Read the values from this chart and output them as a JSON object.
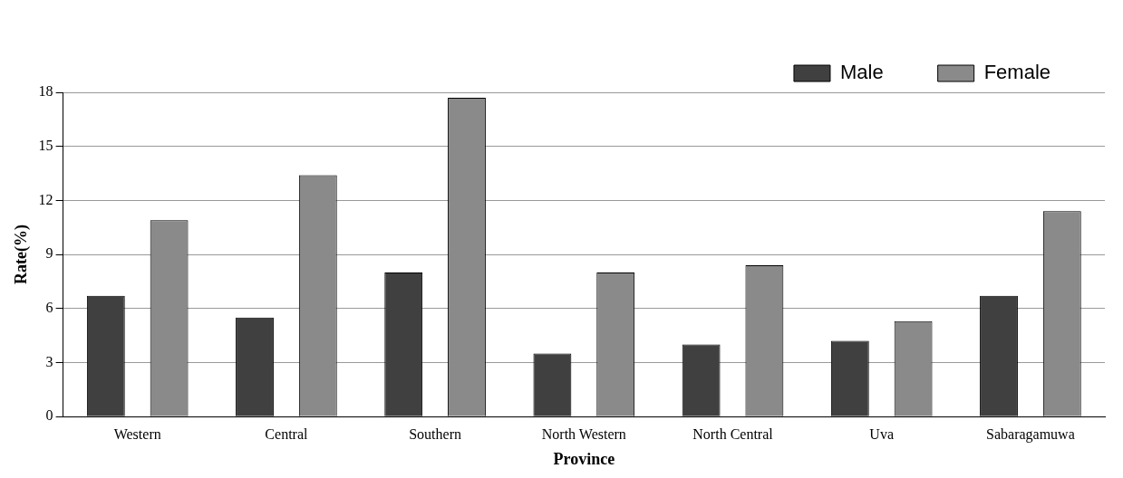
{
  "chart_data": {
    "type": "bar",
    "xlabel": "Province",
    "ylabel": "Rate(%)",
    "categories": [
      "Western",
      "Central",
      "Southern",
      "North Western",
      "North Central",
      "Uva",
      "Sabaragamuwa"
    ],
    "series": [
      {
        "name": "Male",
        "color": "#404040",
        "values": [
          6.7,
          5.5,
          8.0,
          3.5,
          4.0,
          4.2,
          6.7
        ]
      },
      {
        "name": "Female",
        "color": "#8a8a8a",
        "values": [
          10.9,
          13.4,
          17.7,
          8.0,
          8.4,
          5.3,
          11.4
        ]
      }
    ],
    "ylim": [
      0,
      18
    ],
    "yticks": [
      0,
      3,
      6,
      9,
      12,
      15,
      18
    ],
    "grid": "y",
    "legend": "top right"
  }
}
